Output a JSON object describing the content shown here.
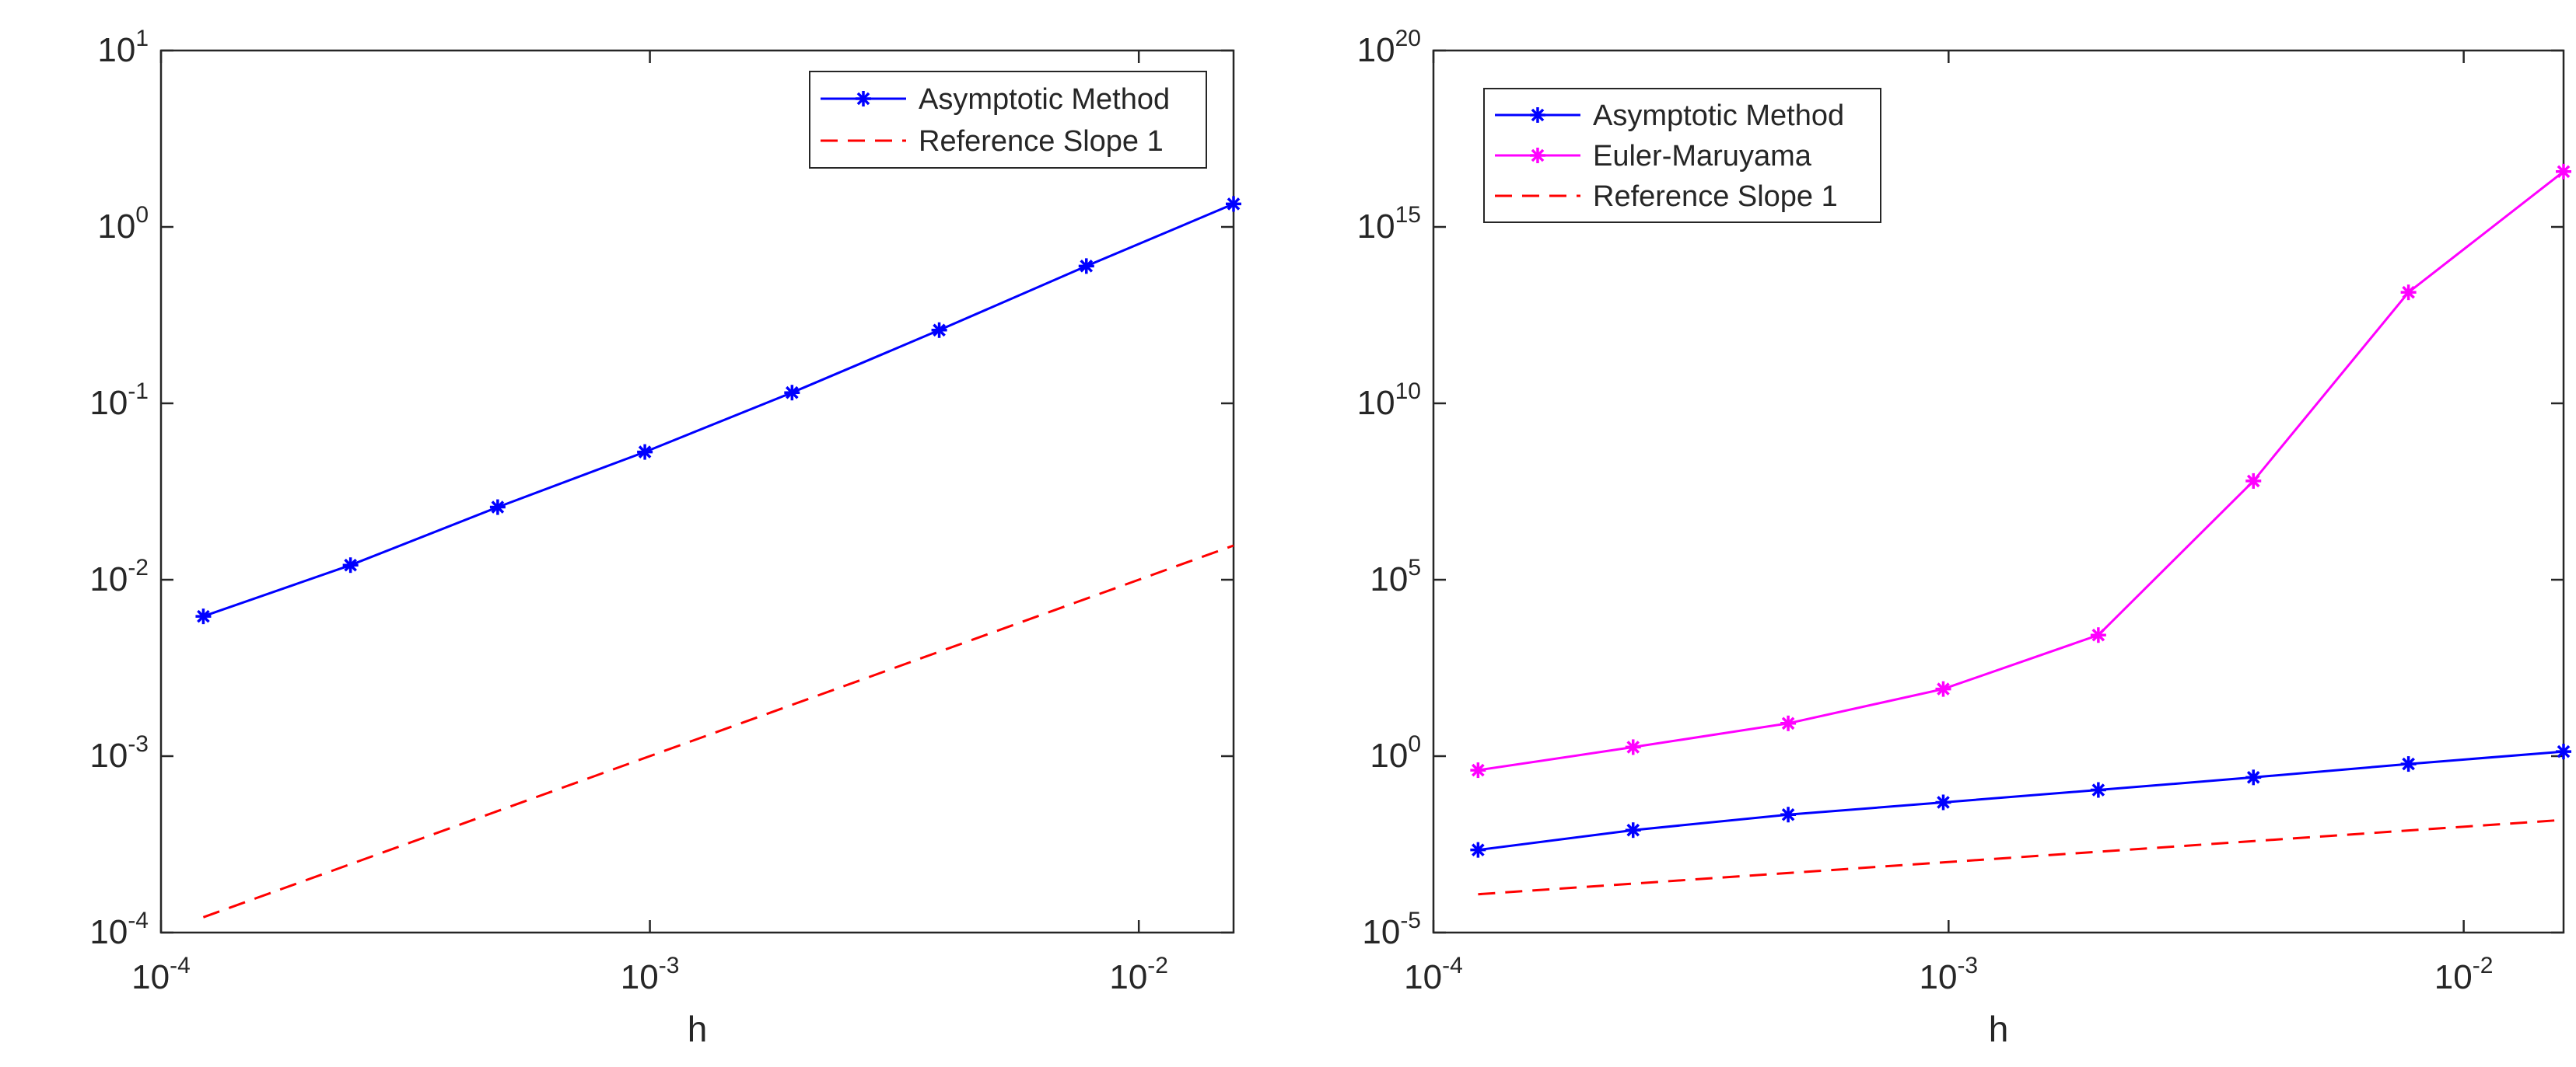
{
  "chart_data": [
    {
      "type": "line",
      "scale": "loglog",
      "xlabel": "h",
      "ylabel": "",
      "xlim": [
        0.0001,
        0.015625
      ],
      "ylim": [
        0.0001,
        10
      ],
      "xticks": [
        {
          "value": 0.0001,
          "base": "10",
          "exp": "-4"
        },
        {
          "value": 0.001,
          "base": "10",
          "exp": "-3"
        },
        {
          "value": 0.01,
          "base": "10",
          "exp": "-2"
        }
      ],
      "yticks": [
        {
          "value": 0.0001,
          "base": "10",
          "exp": "-4"
        },
        {
          "value": 0.001,
          "base": "10",
          "exp": "-3"
        },
        {
          "value": 0.01,
          "base": "10",
          "exp": "-2"
        },
        {
          "value": 0.1,
          "base": "10",
          "exp": "-1"
        },
        {
          "value": 1,
          "base": "10",
          "exp": "0"
        },
        {
          "value": 10,
          "base": "10",
          "exp": "1"
        }
      ],
      "legend_position": "top-right",
      "series": [
        {
          "name": "Asymptotic Method",
          "color": "#0000ff",
          "style": "solid",
          "marker": "asterisk",
          "x": [
            0.00012207,
            0.00024414,
            0.00048828,
            0.00097656,
            0.0019531,
            0.0039063,
            0.0078125,
            0.015625
          ],
          "y": [
            0.0062,
            0.0121,
            0.0258,
            0.053,
            0.115,
            0.26,
            0.6,
            1.35
          ]
        },
        {
          "name": "Reference Slope 1",
          "color": "#ff0000",
          "style": "dashed",
          "marker": "none",
          "x": [
            0.00012207,
            0.015625
          ],
          "y": [
            0.00012207,
            0.015625
          ]
        }
      ]
    },
    {
      "type": "line",
      "scale": "loglog",
      "xlabel": "h",
      "ylabel": "",
      "xlim": [
        0.0001,
        0.015625
      ],
      "ylim": [
        1e-05,
        1e+20
      ],
      "xticks": [
        {
          "value": 0.0001,
          "base": "10",
          "exp": "-4"
        },
        {
          "value": 0.001,
          "base": "10",
          "exp": "-3"
        },
        {
          "value": 0.01,
          "base": "10",
          "exp": "-2"
        }
      ],
      "yticks": [
        {
          "value": 1e-05,
          "base": "10",
          "exp": "-5"
        },
        {
          "value": 1,
          "base": "10",
          "exp": "0"
        },
        {
          "value": 100000,
          "base": "10",
          "exp": "5"
        },
        {
          "value": 10000000000.0,
          "base": "10",
          "exp": "10"
        },
        {
          "value": 1000000000000000.0,
          "base": "10",
          "exp": "15"
        },
        {
          "value": 1e+20,
          "base": "10",
          "exp": "20"
        }
      ],
      "legend_position": "top-left",
      "series": [
        {
          "name": "Asymptotic Method",
          "color": "#0000ff",
          "style": "solid",
          "marker": "asterisk",
          "x": [
            0.00012207,
            0.00024414,
            0.00048828,
            0.00097656,
            0.0019531,
            0.0039063,
            0.0078125,
            0.015625
          ],
          "y": [
            0.0022,
            0.008,
            0.022,
            0.049,
            0.11,
            0.25,
            0.6,
            1.35
          ]
        },
        {
          "name": "Euler-Maruyama",
          "color": "#ff00ff",
          "style": "solid",
          "marker": "asterisk",
          "x": [
            0.00012207,
            0.00024414,
            0.00048828,
            0.00097656,
            0.0019531,
            0.0039063,
            0.0078125,
            0.015625
          ],
          "y": [
            0.4,
            1.8,
            8.5,
            80,
            2700,
            63000000.0,
            14000000000000.0,
            3.7e+16
          ]
        },
        {
          "name": "Reference Slope 1",
          "color": "#ff0000",
          "style": "dashed",
          "marker": "none",
          "x": [
            0.00012207,
            0.015625
          ],
          "y": [
            0.00012207,
            0.015625
          ]
        }
      ]
    }
  ]
}
